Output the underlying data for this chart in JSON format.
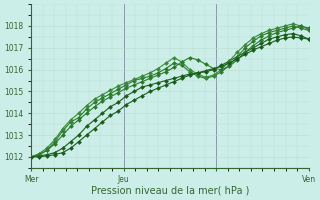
{
  "xlabel": "Pression niveau de la mer( hPa )",
  "bg_color": "#cceee8",
  "grid_color_v": "#bbddcc",
  "grid_color_h": "#bbddcc",
  "vline_color": "#8899aa",
  "line_colors": [
    "#1a5c1a",
    "#2a7a2a",
    "#3a8a3a",
    "#2a7a2a",
    "#1a5c1a"
  ],
  "xlim": [
    0,
    72
  ],
  "ylim": [
    1011.8,
    1019.0
  ],
  "yticks": [
    1012,
    1013,
    1014,
    1015,
    1016,
    1017,
    1018
  ],
  "xtick_positions": [
    0,
    24,
    48,
    72
  ],
  "xtick_labels": [
    "Mer",
    "Jeu",
    "",
    "Ven"
  ],
  "vlines": [
    0,
    24,
    48,
    72
  ],
  "series": [
    [
      1012.0,
      1012.05,
      1012.1,
      1012.2,
      1012.4,
      1012.7,
      1013.0,
      1013.4,
      1013.7,
      1014.0,
      1014.3,
      1014.5,
      1014.8,
      1015.0,
      1015.2,
      1015.3,
      1015.4,
      1015.5,
      1015.6,
      1015.7,
      1015.8,
      1015.85,
      1015.9,
      1016.0,
      1016.2,
      1016.4,
      1016.6,
      1016.8,
      1017.0,
      1017.2,
      1017.4,
      1017.5,
      1017.6,
      1017.65,
      1017.55,
      1017.4
    ],
    [
      1012.0,
      1012.1,
      1012.3,
      1012.7,
      1013.2,
      1013.6,
      1013.8,
      1014.2,
      1014.5,
      1014.7,
      1014.9,
      1015.1,
      1015.3,
      1015.5,
      1015.6,
      1015.7,
      1015.85,
      1016.05,
      1016.3,
      1016.2,
      1015.9,
      1015.7,
      1015.6,
      1015.7,
      1015.9,
      1016.2,
      1016.6,
      1017.0,
      1017.3,
      1017.55,
      1017.7,
      1017.8,
      1017.9,
      1018.0,
      1017.9,
      1017.8
    ],
    [
      1012.0,
      1012.15,
      1012.4,
      1012.8,
      1013.3,
      1013.7,
      1014.0,
      1014.35,
      1014.65,
      1014.85,
      1015.05,
      1015.25,
      1015.4,
      1015.55,
      1015.7,
      1015.85,
      1016.05,
      1016.3,
      1016.55,
      1016.35,
      1016.0,
      1015.8,
      1015.65,
      1015.75,
      1016.0,
      1016.4,
      1016.8,
      1017.15,
      1017.45,
      1017.65,
      1017.8,
      1017.9,
      1018.0,
      1018.1,
      1018.0,
      1017.85
    ],
    [
      1012.0,
      1012.1,
      1012.3,
      1012.6,
      1013.0,
      1013.4,
      1013.7,
      1014.0,
      1014.3,
      1014.55,
      1014.75,
      1014.95,
      1015.15,
      1015.3,
      1015.45,
      1015.6,
      1015.75,
      1015.9,
      1016.1,
      1016.35,
      1016.55,
      1016.45,
      1016.25,
      1016.05,
      1016.0,
      1016.15,
      1016.45,
      1016.8,
      1017.1,
      1017.35,
      1017.55,
      1017.7,
      1017.8,
      1017.9,
      1018.0,
      1017.9
    ],
    [
      1012.0,
      1012.0,
      1012.05,
      1012.1,
      1012.2,
      1012.4,
      1012.7,
      1013.0,
      1013.3,
      1013.6,
      1013.9,
      1014.1,
      1014.4,
      1014.6,
      1014.8,
      1015.0,
      1015.15,
      1015.3,
      1015.45,
      1015.6,
      1015.75,
      1015.85,
      1015.95,
      1016.05,
      1016.15,
      1016.3,
      1016.5,
      1016.7,
      1016.9,
      1017.05,
      1017.2,
      1017.35,
      1017.45,
      1017.5,
      1017.45,
      1017.4
    ]
  ],
  "marker": "D",
  "markersize": 2.0,
  "linewidth": 0.8,
  "label_fontsize": 6.5,
  "tick_fontsize": 5.5,
  "xlabel_fontsize": 7.0
}
